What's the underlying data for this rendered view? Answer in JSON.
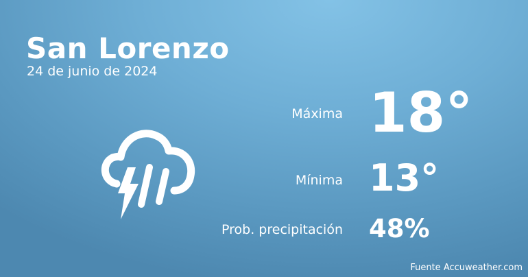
{
  "location": {
    "city": "San Lorenzo",
    "date": "24 de junio de 2024"
  },
  "weather": {
    "icon": "cloud-thunder-rain-icon",
    "max_label": "Máxima",
    "max_value": "18°",
    "min_label": "Mínima",
    "min_value": "13°",
    "precip_label": "Prob. precipitación",
    "precip_value": "48%"
  },
  "footer": {
    "source": "Fuente Accuweather.com"
  },
  "colors": {
    "bg_top": "#83c2e6",
    "bg_bottom": "#4d88b0",
    "text": "#ffffff"
  }
}
